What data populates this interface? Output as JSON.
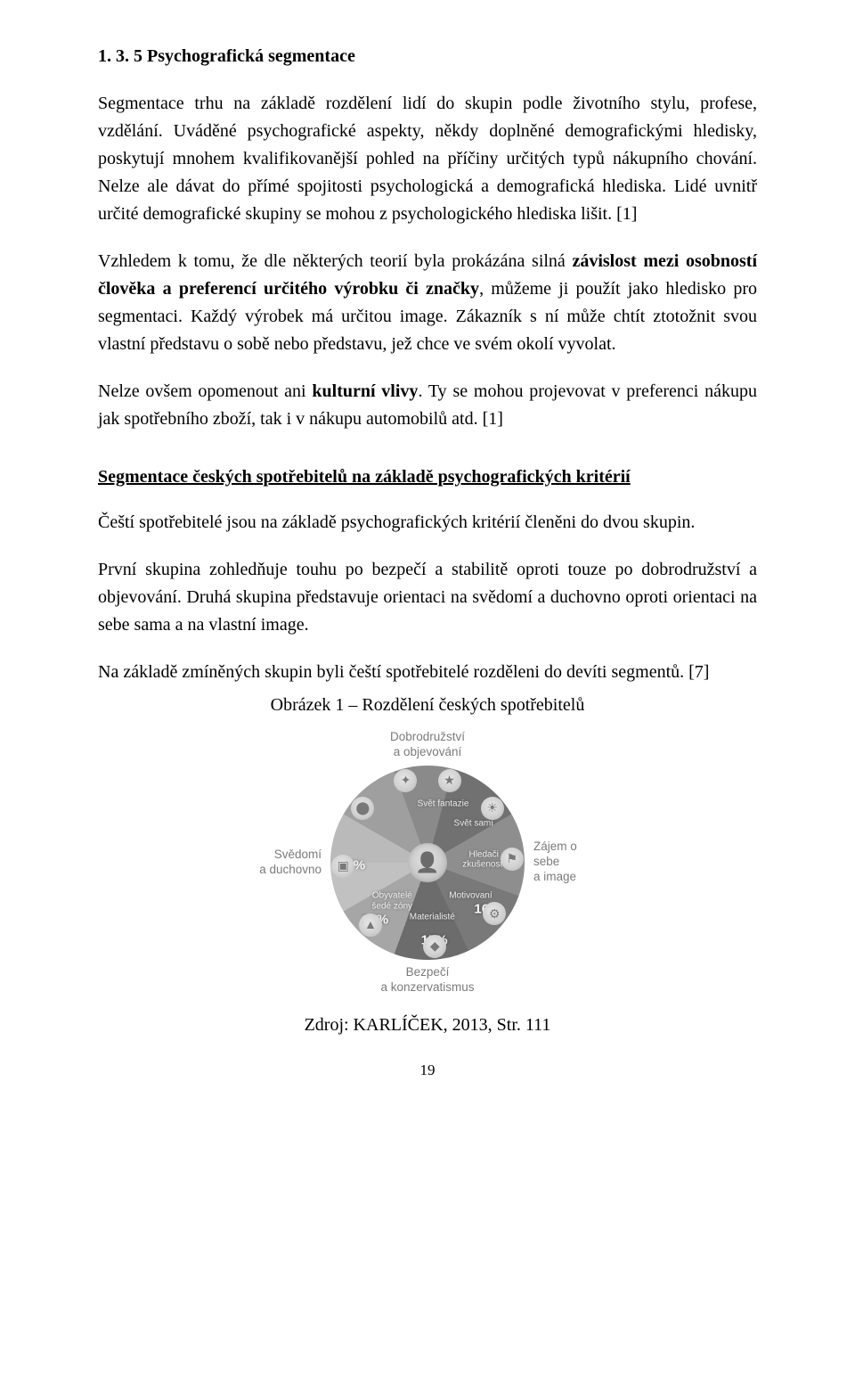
{
  "heading": "1. 3. 5 Psychografická segmentace",
  "p1_a": "Segmentace trhu na základě rozdělení lidí do skupin podle životního stylu, profese, vzdělání. Uváděné psychografické aspekty, někdy doplněné demografickými hledisky, poskytují mnohem kvalifikovanější pohled na příčiny určitých typů nákupního chování. Nelze ale dávat do přímé spojitosti psychologická a demografická hlediska. Lidé uvnitř určité demografické skupiny se mohou z psychologického hlediska lišit. [1]",
  "p2_a": "Vzhledem k tomu, že dle některých teorií byla prokázána silná ",
  "p2_b1": "závislost mezi osobností člověka a preferencí určitého výrobku či značky",
  "p2_c": ", můžeme ji použít jako hledisko pro segmentaci. Každý výrobek má určitou image. Zákazník s ní může chtít ztotožnit svou vlastní představu o sobě nebo představu, jež chce ve svém okolí vyvolat.",
  "p3_a": "Nelze ovšem opomenout ani ",
  "p3_b": "kulturní vlivy",
  "p3_c": ". Ty se mohou projevovat v preferenci nákupu jak spotřebního zboží, tak i v nákupu automobilů atd. [1]",
  "subheading": "Segmentace českých spotřebitelů na základě psychografických kritérií",
  "p4": "Čeští spotřebitelé jsou na základě psychografických kritérií členěni do dvou skupin.",
  "p5": "První skupina zohledňuje touhu po bezpečí a stabilitě oproti touze po dobrodružství a objevování. Druhá skupina představuje orientaci na svědomí a duchovno oproti orientaci na sebe sama a na vlastní image.",
  "p6": "Na základě zmíněných skupin byli čeští spotřebitelé rozděleni do devíti segmentů. [7]",
  "figure_caption": "Obrázek 1 – Rozdělení českých spotřebitelů",
  "figure_source": "Zdroj: KARLÍČEK, 2013, Str. 111",
  "page_number": "19",
  "pie": {
    "axis_top": "Dobrodružství\na objevování",
    "axis_bottom": "Bezpečí\na konzervatismus",
    "axis_left": "Svědomí\na duchovno",
    "axis_right": "Zájem o sebe\na image",
    "center_icon": "👤",
    "segments": [
      {
        "label": "Svět fantazie",
        "pct": "",
        "start": 0,
        "end": 30,
        "color": "#bfbfbf",
        "label_r": 0.62,
        "icon_r": 0.87
      },
      {
        "label": "Svět samí",
        "pct": "",
        "start": 30,
        "end": 70,
        "color": "#a2a2a2",
        "label_r": 0.62,
        "icon_r": 0.87
      },
      {
        "label": "Hledači\nzkušeností",
        "pct": "",
        "start": 70,
        "end": 105,
        "color": "#8b8b8b",
        "label_r": 0.58,
        "icon_r": 0.87
      },
      {
        "label": "Motivovaní",
        "pct": "16%",
        "start": 105,
        "end": 150,
        "color": "#707070",
        "label_r": 0.56,
        "pct_r": 0.78,
        "icon_r": 0.87
      },
      {
        "label": "Materialisté",
        "pct": "15%",
        "start": 150,
        "end": 200,
        "color": "#8f8f8f",
        "label_r": 0.56,
        "pct_r": 0.8,
        "icon_r": 0.87
      },
      {
        "label": "Obyvatelé\nšedé zóny",
        "pct": "10%",
        "start": 200,
        "end": 245,
        "color": "#787878",
        "label_r": 0.54,
        "pct_r": 0.8,
        "icon_r": 0.87
      },
      {
        "label": "",
        "pct": "12%",
        "start": 245,
        "end": 290,
        "color": "#6a6a6a",
        "label_r": 0.56,
        "pct_r": 0.78,
        "icon_r": 0.87
      },
      {
        "label": "",
        "pct": "",
        "start": 290,
        "end": 330,
        "color": "#a9a9a9",
        "label_r": 0.58,
        "icon_r": 0.87
      },
      {
        "label": "",
        "pct": "",
        "start": 330,
        "end": 360,
        "color": "#c7c7c7",
        "label_r": 0.58,
        "icon_r": 0.87
      }
    ],
    "icon_glyphs": [
      "★",
      "☀",
      "⚑",
      "⚙",
      "◆",
      "▲",
      "▣",
      "⬤",
      "✦"
    ]
  }
}
